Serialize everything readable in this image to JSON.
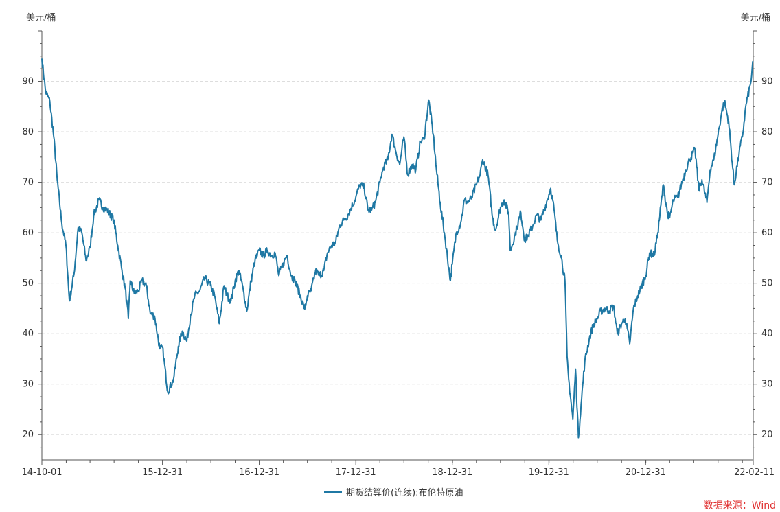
{
  "chart_data": {
    "type": "line",
    "left_unit": "美元/桶",
    "right_unit": "美元/桶",
    "ylim": [
      15,
      100
    ],
    "yticks": [
      20,
      30,
      40,
      50,
      60,
      70,
      80,
      90
    ],
    "xlim": [
      "2014-10-01",
      "2022-02-11"
    ],
    "x_tick_labels": [
      "14-10-01",
      "15-12-31",
      "16-12-31",
      "17-12-31",
      "18-12-31",
      "19-12-31",
      "20-12-31",
      "22-02-11"
    ],
    "x_tick_dates": [
      "2014-10-01",
      "2015-12-31",
      "2016-12-31",
      "2017-12-31",
      "2018-12-31",
      "2019-12-31",
      "2020-12-31",
      "2022-02-11"
    ],
    "grid": "horizontal-dashed",
    "legend_position": "bottom",
    "series": [
      {
        "name": "期货结算价(连续):布伦特原油",
        "color": "#1f78a4",
        "x": [
          "2014-10-01",
          "2014-10-15",
          "2014-10-31",
          "2014-11-15",
          "2014-11-28",
          "2014-12-15",
          "2014-12-31",
          "2015-01-13",
          "2015-01-31",
          "2015-02-15",
          "2015-03-01",
          "2015-03-17",
          "2015-04-01",
          "2015-04-15",
          "2015-05-05",
          "2015-05-20",
          "2015-06-05",
          "2015-06-30",
          "2015-07-15",
          "2015-07-31",
          "2015-08-12",
          "2015-08-24",
          "2015-08-31",
          "2015-09-15",
          "2015-10-01",
          "2015-10-15",
          "2015-10-31",
          "2015-11-15",
          "2015-12-01",
          "2015-12-21",
          "2015-12-31",
          "2016-01-20",
          "2016-02-11",
          "2016-02-29",
          "2016-03-15",
          "2016-04-01",
          "2016-04-15",
          "2016-05-01",
          "2016-05-20",
          "2016-06-08",
          "2016-06-30",
          "2016-07-15",
          "2016-08-02",
          "2016-08-20",
          "2016-09-01",
          "2016-09-15",
          "2016-10-01",
          "2016-10-15",
          "2016-11-01",
          "2016-11-14",
          "2016-11-30",
          "2016-12-15",
          "2016-12-31",
          "2017-01-15",
          "2017-02-01",
          "2017-02-15",
          "2017-03-01",
          "2017-03-15",
          "2017-04-01",
          "2017-04-15",
          "2017-05-01",
          "2017-05-15",
          "2017-06-01",
          "2017-06-21",
          "2017-07-01",
          "2017-07-15",
          "2017-08-01",
          "2017-08-15",
          "2017-09-01",
          "2017-09-15",
          "2017-10-01",
          "2017-10-15",
          "2017-11-01",
          "2017-11-15",
          "2017-12-01",
          "2017-12-31",
          "2018-01-15",
          "2018-02-01",
          "2018-02-15",
          "2018-03-01",
          "2018-03-15",
          "2018-04-01",
          "2018-04-15",
          "2018-05-01",
          "2018-05-17",
          "2018-06-01",
          "2018-06-15",
          "2018-07-01",
          "2018-07-15",
          "2018-08-01",
          "2018-08-15",
          "2018-09-01",
          "2018-09-15",
          "2018-10-03",
          "2018-10-20",
          "2018-11-01",
          "2018-11-15",
          "2018-12-01",
          "2018-12-24",
          "2018-12-31",
          "2019-01-15",
          "2019-02-01",
          "2019-02-15",
          "2019-03-01",
          "2019-03-15",
          "2019-04-01",
          "2019-04-15",
          "2019-04-25",
          "2019-05-15",
          "2019-06-01",
          "2019-06-12",
          "2019-07-01",
          "2019-07-15",
          "2019-08-01",
          "2019-08-07",
          "2019-08-25",
          "2019-09-01",
          "2019-09-16",
          "2019-10-01",
          "2019-10-15",
          "2019-11-01",
          "2019-11-15",
          "2019-12-01",
          "2019-12-31",
          "2020-01-07",
          "2020-01-20",
          "2020-02-01",
          "2020-02-15",
          "2020-03-01",
          "2020-03-09",
          "2020-03-15",
          "2020-03-31",
          "2020-04-10",
          "2020-04-21",
          "2020-05-01",
          "2020-05-15",
          "2020-06-01",
          "2020-06-15",
          "2020-07-01",
          "2020-07-15",
          "2020-08-01",
          "2020-08-15",
          "2020-09-01",
          "2020-09-15",
          "2020-10-01",
          "2020-10-15",
          "2020-11-01",
          "2020-11-15",
          "2020-12-01",
          "2020-12-31",
          "2021-01-15",
          "2021-02-01",
          "2021-02-15",
          "2021-03-08",
          "2021-03-23",
          "2021-04-01",
          "2021-04-15",
          "2021-05-01",
          "2021-05-15",
          "2021-06-01",
          "2021-06-15",
          "2021-07-06",
          "2021-07-20",
          "2021-08-01",
          "2021-08-20",
          "2021-09-01",
          "2021-09-15",
          "2021-10-01",
          "2021-10-15",
          "2021-10-25",
          "2021-11-10",
          "2021-12-01",
          "2021-12-20",
          "2022-01-01",
          "2022-01-15",
          "2022-02-01",
          "2022-02-11"
        ],
        "y": [
          94.5,
          88.0,
          86.0,
          79.0,
          70.5,
          62.0,
          57.5,
          46.5,
          52.0,
          61.0,
          60.0,
          54.5,
          57.0,
          63.5,
          66.5,
          65.0,
          64.5,
          62.5,
          57.5,
          52.5,
          49.0,
          43.0,
          50.5,
          48.0,
          48.5,
          50.5,
          49.5,
          44.0,
          43.5,
          37.0,
          37.3,
          28.5,
          31.0,
          37.5,
          40.5,
          38.5,
          43.5,
          47.5,
          48.5,
          51.0,
          49.5,
          47.5,
          42.0,
          49.5,
          47.5,
          46.5,
          50.5,
          52.5,
          48.5,
          44.5,
          50.5,
          54.5,
          56.5,
          55.5,
          56.5,
          55.5,
          56.0,
          51.5,
          54.0,
          55.5,
          51.5,
          50.5,
          48.0,
          44.8,
          47.5,
          48.5,
          52.5,
          51.5,
          52.5,
          56.0,
          57.5,
          58.0,
          61.5,
          62.5,
          63.5,
          67.0,
          69.5,
          69.0,
          64.5,
          64.5,
          66.0,
          70.0,
          73.0,
          74.5,
          79.5,
          76.0,
          73.5,
          79.0,
          71.5,
          73.5,
          72.5,
          78.0,
          78.5,
          86.3,
          79.5,
          72.5,
          66.0,
          60.0,
          50.5,
          53.8,
          60.0,
          62.0,
          66.5,
          66.0,
          67.0,
          69.5,
          71.5,
          74.5,
          71.5,
          63.0,
          60.5,
          65.0,
          66.5,
          64.0,
          56.5,
          59.5,
          61.0,
          64.0,
          58.5,
          59.5,
          61.5,
          63.5,
          62.5,
          67.5,
          68.8,
          64.5,
          58.5,
          55.5,
          50.5,
          35.5,
          31.0,
          23.0,
          33.0,
          19.4,
          26.0,
          34.5,
          39.0,
          41.5,
          43.0,
          44.5,
          45.0,
          44.5,
          45.5,
          40.0,
          42.0,
          43.0,
          38.0,
          45.0,
          47.5,
          51.5,
          56.0,
          55.5,
          60.0,
          69.5,
          64.0,
          63.0,
          66.5,
          67.0,
          69.5,
          72.5,
          74.5,
          76.5,
          68.5,
          70.5,
          66.0,
          72.5,
          74.5,
          79.5,
          84.0,
          86.0,
          82.0,
          69.5,
          76.0,
          79.0,
          85.5,
          89.5,
          94.0
        ]
      }
    ]
  },
  "legend": {
    "label": "期货结算价(连续):布伦特原油"
  },
  "source_text": "数据来源：Wind"
}
